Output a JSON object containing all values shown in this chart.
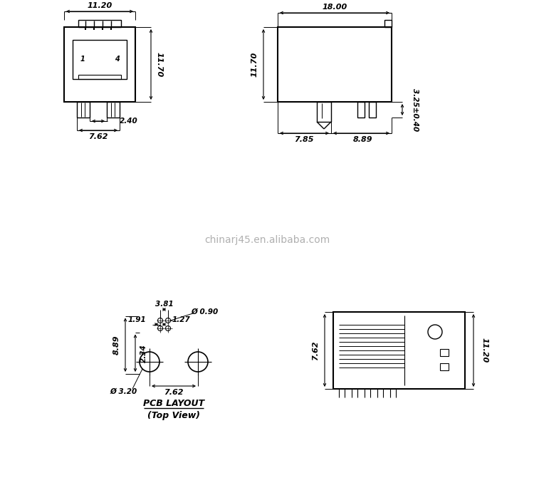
{
  "bg_color": "#ffffff",
  "line_color": "#000000",
  "watermark": "chinarj45.en.alibaba.com",
  "watermark_color": "#b0b0b0",
  "pcb_label": "PCB LAYOUT",
  "pcb_sub_label": "(Top View)"
}
